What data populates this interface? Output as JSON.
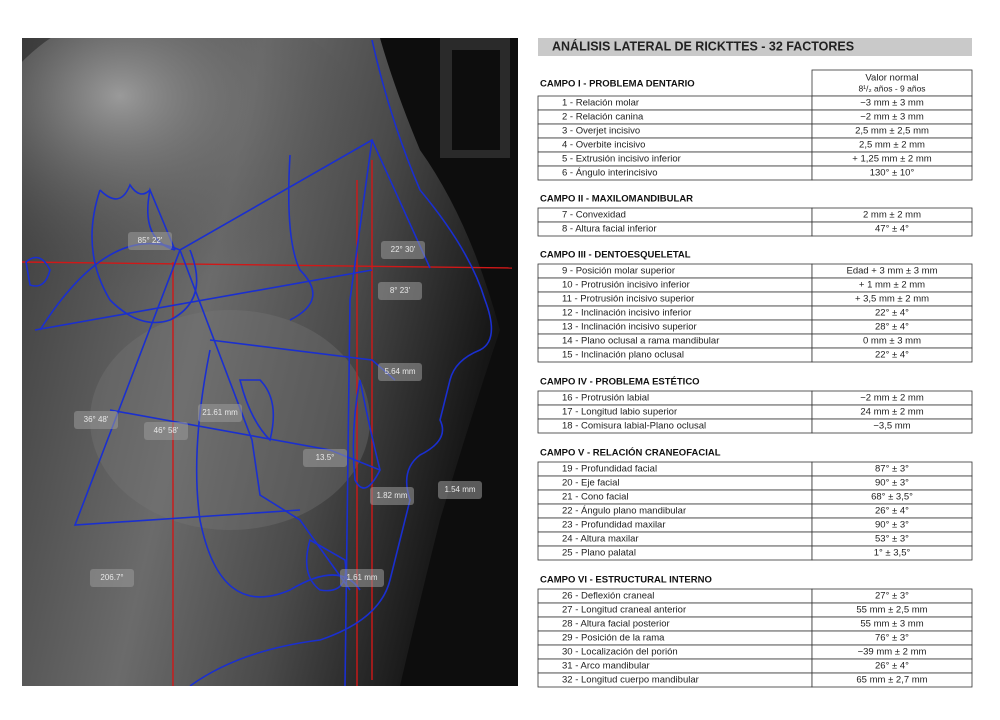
{
  "xray": {
    "labels": [
      "85° 22'",
      "22° 30'",
      "8° 23'",
      "36° 48'",
      "21.61 mm",
      "46° 58'",
      "13.5°",
      "5.64 mm",
      "1.54 mm",
      "206.7°",
      "1.61 mm",
      "1.82 mm"
    ]
  },
  "table": {
    "title": "ANÁLISIS LATERAL DE RICKTTES - 32 FACTORES",
    "header": {
      "value_title": "Valor normal",
      "age": "8¹/₂ años - 9 años"
    },
    "sections": [
      {
        "title": "CAMPO I - PROBLEMA DENTARIO",
        "rows": [
          [
            "1 - Relación molar",
            "−3 mm ± 3 mm"
          ],
          [
            "2 - Relación canina",
            "−2 mm ± 3 mm"
          ],
          [
            "3 - Overjet incisivo",
            "2,5 mm ± 2,5 mm"
          ],
          [
            "4 - Overbite incisivo",
            "2,5 mm ± 2 mm"
          ],
          [
            "5 - Extrusión incisivo inferior",
            "+ 1,25 mm ± 2 mm"
          ],
          [
            "6 - Ángulo interincisivo",
            "130° ± 10°"
          ]
        ]
      },
      {
        "title": "CAMPO II - MAXILOMANDIBULAR",
        "rows": [
          [
            "7 - Convexidad",
            "2 mm ± 2 mm"
          ],
          [
            "8 - Altura facial inferior",
            "47° ± 4°"
          ]
        ]
      },
      {
        "title": "CAMPO III - DENTOESQUELETAL",
        "rows": [
          [
            "9 - Posición molar superior",
            "Edad + 3 mm ± 3 mm"
          ],
          [
            "10 - Protrusión incisivo inferior",
            "+ 1 mm ± 2 mm"
          ],
          [
            "11 - Protrusión incisivo superior",
            "+ 3,5 mm ± 2 mm"
          ],
          [
            "12 - Inclinación incisivo inferior",
            "22° ± 4°"
          ],
          [
            "13 - Inclinación incisivo superior",
            "28° ± 4°"
          ],
          [
            "14 - Plano oclusal a rama mandibular",
            "0 mm ± 3 mm"
          ],
          [
            "15 - Inclinación plano oclusal",
            "22° ± 4°"
          ]
        ]
      },
      {
        "title": "CAMPO IV - PROBLEMA ESTÉTICO",
        "rows": [
          [
            "16 - Protrusión labial",
            "−2 mm ± 2 mm"
          ],
          [
            "17 - Longitud labio superior",
            "24 mm ± 2 mm"
          ],
          [
            "18 - Comisura labial-Plano oclusal",
            "−3,5 mm"
          ]
        ]
      },
      {
        "title": "CAMPO V - RELACIÓN CRANEOFACIAL",
        "rows": [
          [
            "19 - Profundidad facial",
            "87° ± 3°"
          ],
          [
            "20 - Eje facial",
            "90° ± 3°"
          ],
          [
            "21 - Cono facial",
            "68° ± 3,5°"
          ],
          [
            "22 - Ángulo plano mandibular",
            "26° ± 4°"
          ],
          [
            "23 - Profundidad maxilar",
            "90° ± 3°"
          ],
          [
            "24 - Altura maxilar",
            "53° ± 3°"
          ],
          [
            "25 - Plano palatal",
            "1° ± 3,5°"
          ]
        ]
      },
      {
        "title": "CAMPO VI - ESTRUCTURAL INTERNO",
        "rows": [
          [
            "26 - Deflexión craneal",
            "27° ± 3°"
          ],
          [
            "27 - Longitud craneal anterior",
            "55 mm ± 2,5 mm"
          ],
          [
            "28 - Altura facial posterior",
            "55 mm ± 3 mm"
          ],
          [
            "29 - Posición de la rama",
            "76° ± 3°"
          ],
          [
            "30 - Localización del porión",
            "−39 mm ± 2 mm"
          ],
          [
            "31 - Arco mandibular",
            "26° ± 4°"
          ],
          [
            "32 - Longitud cuerpo mandibular",
            "65 mm ± 2,7 mm"
          ]
        ]
      }
    ]
  }
}
